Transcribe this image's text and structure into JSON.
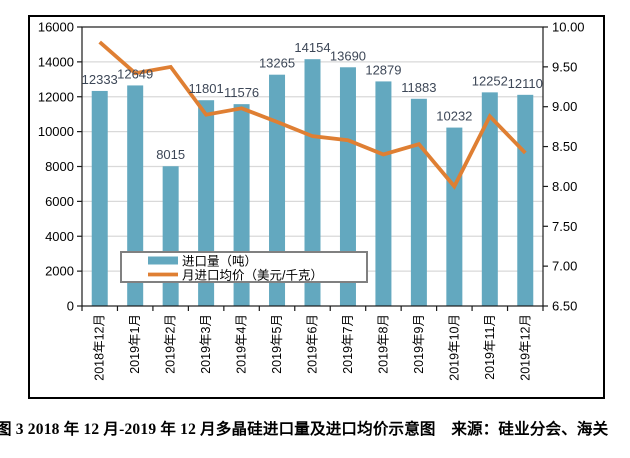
{
  "figure": {
    "caption": "图 3  2018 年 12 月-2019 年 12 月多晶硅进口量及进口均价示意图　来源：硅业分会、海关"
  },
  "colors": {
    "bar": "#63a8bf",
    "line": "#df7f33",
    "grid": "#d9d9d9",
    "axis": "#1a1a1a",
    "value_label": "#3d4757",
    "legend_border": "#808080",
    "frame_border": "#000000",
    "background": "#ffffff"
  },
  "chart_data": {
    "type": "combo-bar-line",
    "title": "",
    "categories": [
      "2018年12月",
      "2019年1月",
      "2019年2月",
      "2019年3月",
      "2019年4月",
      "2019年5月",
      "2019年6月",
      "2019年7月",
      "2019年8月",
      "2019年9月",
      "2019年10月",
      "2019年11月",
      "2019年12月"
    ],
    "series": [
      {
        "name": "进口量（吨）",
        "type": "bar",
        "axis": "left",
        "color": "#63a8bf",
        "values": [
          12333,
          12649,
          8015,
          11801,
          11576,
          13265,
          14154,
          13690,
          12879,
          11883,
          10232,
          12252,
          12110
        ]
      },
      {
        "name": "月进口均价（美元/千克）",
        "type": "line",
        "axis": "right",
        "color": "#df7f33",
        "values": [
          9.81,
          9.42,
          9.5,
          8.9,
          8.98,
          8.81,
          8.63,
          8.58,
          8.4,
          8.53,
          8.0,
          8.88,
          8.42
        ]
      }
    ],
    "left_axis": {
      "min": 0,
      "max": 16000,
      "step": 2000,
      "tick_labels": [
        "16000",
        "14000",
        "12000",
        "10000",
        "8000",
        "6000",
        "4000",
        "2000",
        "0"
      ]
    },
    "right_axis": {
      "min": 6.5,
      "max": 10.0,
      "step": 0.5,
      "tick_labels": [
        "10.00",
        "9.50",
        "9.00",
        "8.50",
        "8.00",
        "7.50",
        "7.00",
        "6.50"
      ]
    },
    "grid": true,
    "bar_value_labels": true,
    "legend_position": "inside-bottom-left",
    "x_label_rotation": -90
  }
}
